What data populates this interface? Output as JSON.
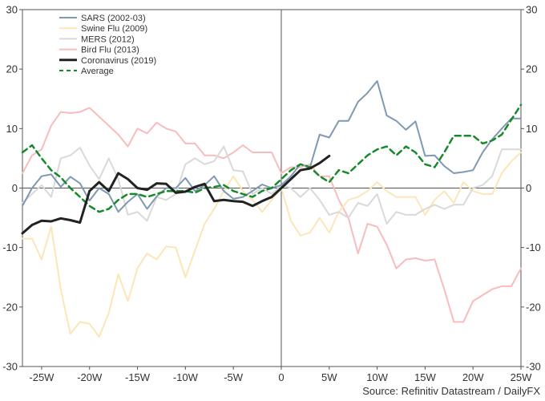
{
  "chart_data": {
    "type": "line",
    "source": "Source: Refinitiv Datastream / DailyFX",
    "xlim": [
      -27,
      25
    ],
    "ylim": [
      -30,
      30
    ],
    "x_ticks": [
      -25,
      -20,
      -15,
      -10,
      -5,
      0,
      5,
      10,
      15,
      20,
      25
    ],
    "x_tick_labels": [
      "-25W",
      "-20W",
      "-15W",
      "-10W",
      "-5W",
      "0",
      "5W",
      "10W",
      "15W",
      "20W",
      "25W"
    ],
    "y_ticks": [
      -30,
      -20,
      -10,
      0,
      10,
      20,
      30
    ],
    "y_tick_labels": [
      "-30",
      "-20",
      "-10",
      "0",
      "10",
      "20",
      "30"
    ],
    "legend_position": "top-left",
    "series": [
      {
        "name": "SARS (2002-03)",
        "color": "#7f99b3",
        "x": [
          -27,
          -26,
          -25,
          -24,
          -23,
          -22,
          -21,
          -20,
          -19,
          -18,
          -17,
          -16,
          -15,
          -14,
          -13,
          -12,
          -11,
          -10,
          -9,
          -8,
          -7,
          -6,
          -5,
          -4,
          -3,
          -2,
          -1,
          0,
          1,
          2,
          3,
          4,
          5,
          6,
          7,
          8,
          9,
          10,
          11,
          12,
          13,
          14,
          15,
          16,
          17,
          18,
          19,
          20,
          21,
          22,
          23,
          24,
          25
        ],
        "y": [
          -3,
          0,
          2,
          2.3,
          0.2,
          1.9,
          0.8,
          -2.1,
          0,
          -1,
          -4,
          -2.3,
          -1,
          -3.5,
          -1.4,
          0,
          0,
          1.7,
          -0.5,
          0.5,
          2,
          -0.5,
          -1.8,
          -1.5,
          -0.5,
          0.6,
          0,
          0.5,
          2,
          4,
          3.5,
          9,
          8.5,
          11.3,
          11.3,
          14.5,
          16,
          18,
          12.2,
          11.3,
          9.8,
          11.2,
          5.4,
          5.5,
          3.7,
          2.5,
          2.7,
          3,
          6,
          8.2,
          10,
          11.7,
          11.7
        ]
      },
      {
        "name": "Swine Flu (2009)",
        "color": "#fce6b8",
        "x": [
          -27,
          -26,
          -25,
          -24,
          -23,
          -22,
          -21,
          -20,
          -19,
          -18,
          -17,
          -16,
          -15,
          -14,
          -13,
          -12,
          -11,
          -10,
          -9,
          -8,
          -7,
          -6,
          -5,
          -4,
          -3,
          -2,
          -1,
          0,
          1,
          2,
          3,
          4,
          5,
          6,
          7,
          8,
          9,
          10,
          11,
          12,
          13,
          14,
          15,
          16,
          17,
          18,
          19,
          20,
          21,
          22,
          23,
          24,
          25
        ],
        "y": [
          -8.5,
          -8.5,
          -12,
          -6.5,
          -17,
          -24.5,
          -22.5,
          -22.8,
          -25,
          -21,
          -14.5,
          -19,
          -13.5,
          -11,
          -12,
          -9.8,
          -10,
          -15,
          -10.5,
          -6,
          -3.5,
          -0.5,
          2,
          -0.5,
          -2,
          -4,
          -2,
          0,
          -5.5,
          -8,
          -7.5,
          -5,
          -7.5,
          -4,
          -2,
          -1.5,
          -0.5,
          1,
          -0.5,
          -1.5,
          -1.5,
          -1.5,
          -4.5,
          -2,
          -0.5,
          -2.5,
          1,
          -0.5,
          -1,
          -1,
          2.5,
          4.5,
          6
        ]
      },
      {
        "name": "MERS (2012)",
        "color": "#d9d9d9",
        "x": [
          -27,
          -26,
          -25,
          -24,
          -23,
          -22,
          -21,
          -20,
          -19,
          -18,
          -17,
          -16,
          -15,
          -14,
          -13,
          -12,
          -11,
          -10,
          -9,
          -8,
          -7,
          -6,
          -5,
          -4,
          -3,
          -2,
          -1,
          0,
          1,
          2,
          3,
          4,
          5,
          6,
          7,
          8,
          9,
          10,
          11,
          12,
          13,
          14,
          15,
          16,
          17,
          18,
          19,
          20,
          21,
          22,
          23,
          24,
          25
        ],
        "y": [
          -2.5,
          -1,
          0.5,
          -1.5,
          5,
          5.5,
          6.8,
          3.8,
          1.5,
          5,
          1.5,
          -4.5,
          -4,
          -5.5,
          -1.5,
          -2,
          -1,
          4,
          5,
          4,
          4.5,
          7,
          3,
          2.8,
          -1,
          0,
          -1,
          0.5,
          0,
          -1.5,
          0,
          -2,
          -4.5,
          -4,
          -5,
          -2.5,
          -3,
          -1,
          -6,
          -4,
          -4.5,
          -4.5,
          -3.5,
          -2.8,
          -3.5,
          -2.8,
          -2.8,
          0,
          0.5,
          2,
          6.5,
          6.5,
          6.5
        ]
      },
      {
        "name": "Bird Flu (2013)",
        "color": "#f9bcbc",
        "x": [
          -27,
          -26,
          -25,
          -24,
          -23,
          -22,
          -21,
          -20,
          -19,
          -18,
          -17,
          -16,
          -15,
          -14,
          -13,
          -12,
          -11,
          -10,
          -9,
          -8,
          -7,
          -6,
          -5,
          -4,
          -3,
          -2,
          -1,
          0,
          1,
          2,
          3,
          4,
          5,
          6,
          7,
          8,
          9,
          10,
          11,
          12,
          13,
          14,
          15,
          16,
          17,
          18,
          19,
          20,
          21,
          22,
          23,
          24,
          25
        ],
        "y": [
          2.5,
          5.5,
          6.5,
          10.5,
          12.8,
          12.6,
          12.8,
          13.5,
          12,
          10.5,
          9,
          7,
          10,
          9.2,
          11,
          10,
          9.5,
          7.5,
          7.5,
          5.5,
          5.5,
          5,
          6,
          7.2,
          6,
          6,
          6,
          2.5,
          3.5,
          3.5,
          4,
          2,
          2,
          -2,
          -5,
          -11,
          -6,
          -6.5,
          -9.5,
          -13.5,
          -12,
          -11.8,
          -12.2,
          -12,
          -17,
          -22.5,
          -22.5,
          -19,
          -18,
          -17,
          -16.5,
          -16.5,
          -13.5
        ]
      },
      {
        "name": "Coronavirus (2019)",
        "color": "#222222",
        "x": [
          -27,
          -26,
          -25,
          -24,
          -23,
          -22,
          -21,
          -20,
          -19,
          -18,
          -17,
          -16,
          -15,
          -14,
          -13,
          -12,
          -11,
          -10,
          -9,
          -8,
          -7,
          -6,
          -5,
          -4,
          -3,
          -2,
          -1,
          0,
          1,
          2,
          3,
          4,
          5
        ],
        "y": [
          -7.6,
          -6.2,
          -5.5,
          -5.6,
          -5.1,
          -5.4,
          -5.8,
          -0.5,
          1,
          -0.5,
          2.5,
          1.5,
          0,
          -0.3,
          0.8,
          0.7,
          -0.8,
          -0.6,
          0.2,
          0.7,
          -2.2,
          -2,
          -2.2,
          -2.3,
          -3,
          -2.2,
          -1.5,
          0,
          1.5,
          3,
          3.3,
          4.2,
          5.4
        ]
      },
      {
        "name": "Average",
        "color": "#168a2b",
        "dashed": true,
        "x": [
          -27,
          -26,
          -25,
          -24,
          -23,
          -22,
          -21,
          -20,
          -19,
          -18,
          -17,
          -16,
          -15,
          -14,
          -13,
          -12,
          -11,
          -10,
          -9,
          -8,
          -7,
          -6,
          -5,
          -4,
          -3,
          -2,
          -1,
          0,
          1,
          2,
          3,
          4,
          5,
          6,
          7,
          8,
          9,
          10,
          11,
          12,
          13,
          14,
          15,
          16,
          17,
          18,
          19,
          20,
          21,
          22,
          23,
          24,
          25
        ],
        "y": [
          6,
          7.2,
          5,
          3,
          1.8,
          0,
          -1.5,
          -3,
          -4,
          -3.5,
          -2,
          -1,
          -1,
          -1.5,
          -1,
          -0.5,
          -0.5,
          -0.5,
          -0.8,
          0,
          0.2,
          0.5,
          -0.5,
          -1,
          -1.5,
          -0.5,
          0,
          1.5,
          3,
          4,
          3.5,
          2,
          1,
          3,
          2.5,
          4,
          5.5,
          6.5,
          7,
          5.5,
          7,
          6,
          4,
          3.5,
          6,
          8.8,
          8.8,
          8.8,
          7.5,
          8,
          9,
          11.5,
          14
        ]
      }
    ]
  }
}
